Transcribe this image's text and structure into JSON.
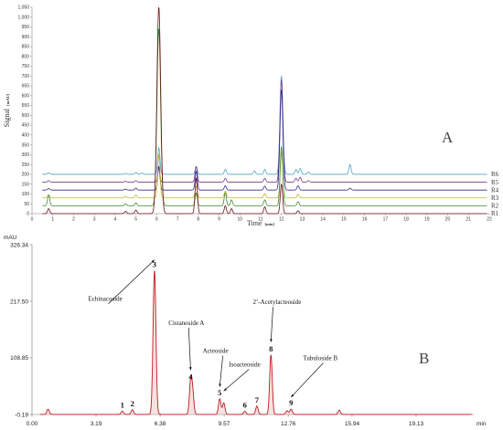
{
  "chart_data": [
    {
      "type": "line",
      "panel_label": "A",
      "xlabel": "Time",
      "xunit": "[min]",
      "ylabel": "Signal",
      "yunit": "[mAU]",
      "xlim": [
        0,
        22
      ],
      "ylim": [
        0,
        1050
      ],
      "x_ticks": [
        "0",
        "1",
        "2",
        "3",
        "4",
        "5",
        "6",
        "7",
        "8",
        "9",
        "10",
        "11",
        "12",
        "13",
        "14",
        "15",
        "16",
        "17",
        "18",
        "19",
        "20",
        "21",
        "22"
      ],
      "y_ticks": [
        "0",
        "50",
        "100",
        "150",
        "200",
        "250",
        "300",
        "350",
        "400",
        "450",
        "500",
        "550",
        "600",
        "650",
        "700",
        "750",
        "800",
        "850",
        "900",
        "950",
        "1,000",
        "1,050"
      ],
      "baseline_offset_step": 40,
      "peak_width_min": 0.05,
      "series": [
        {
          "name": "R6",
          "color": "#4BA3C3",
          "peaks": [
            [
              0.8,
              8
            ],
            [
              4.5,
              5
            ],
            [
              5.0,
              10
            ],
            [
              5.3,
              6
            ],
            [
              6.1,
              135
            ],
            [
              7.9,
              40
            ],
            [
              9.3,
              25
            ],
            [
              10.7,
              18
            ],
            [
              11.2,
              25
            ],
            [
              12.0,
              500
            ],
            [
              12.7,
              25
            ],
            [
              12.9,
              30
            ],
            [
              13.3,
              12
            ],
            [
              15.3,
              50
            ]
          ]
        },
        {
          "name": "R5",
          "color": "#7A3D8A",
          "peaks": [
            [
              0.8,
              8
            ],
            [
              4.5,
              5
            ],
            [
              5.0,
              8
            ],
            [
              6.1,
              70
            ],
            [
              7.9,
              80
            ],
            [
              9.3,
              20
            ],
            [
              11.2,
              20
            ],
            [
              12.0,
              520
            ],
            [
              12.7,
              20
            ],
            [
              12.9,
              25
            ],
            [
              13.3,
              8
            ]
          ]
        },
        {
          "name": "R4",
          "color": "#2E2A8C",
          "peaks": [
            [
              0.8,
              8
            ],
            [
              4.5,
              5
            ],
            [
              5.0,
              10
            ],
            [
              6.1,
              120
            ],
            [
              7.9,
              95
            ],
            [
              9.3,
              22
            ],
            [
              11.2,
              20
            ],
            [
              12.0,
              510
            ],
            [
              12.8,
              22
            ],
            [
              15.3,
              10
            ]
          ]
        },
        {
          "name": "R3",
          "color": "#C7B22A",
          "peaks": [
            [
              0.8,
              15
            ],
            [
              4.5,
              8
            ],
            [
              5.0,
              15
            ],
            [
              6.1,
              220
            ],
            [
              7.9,
              60
            ],
            [
              9.3,
              35
            ],
            [
              11.2,
              22
            ],
            [
              12.0,
              230
            ],
            [
              12.8,
              18
            ]
          ]
        },
        {
          "name": "R2",
          "color": "#3E8A2F",
          "peaks": [
            [
              0.8,
              55
            ],
            [
              4.5,
              10
            ],
            [
              5.0,
              15
            ],
            [
              6.1,
              900
            ],
            [
              7.9,
              65
            ],
            [
              9.3,
              65
            ],
            [
              9.6,
              30
            ],
            [
              11.2,
              30
            ],
            [
              12.0,
              300
            ],
            [
              12.8,
              20
            ]
          ]
        },
        {
          "name": "R1",
          "color": "#6B1414",
          "peaks": [
            [
              0.8,
              25
            ],
            [
              4.5,
              12
            ],
            [
              5.0,
              18
            ],
            [
              6.1,
              1050
            ],
            [
              7.9,
              180
            ],
            [
              9.3,
              40
            ],
            [
              9.6,
              25
            ],
            [
              11.2,
              35
            ],
            [
              12.0,
              150
            ],
            [
              12.8,
              15
            ]
          ]
        }
      ]
    },
    {
      "type": "line",
      "panel_label": "B",
      "ylabel": "mAU",
      "xlabel": "min",
      "xlim": [
        0.0,
        22.0
      ],
      "ylim": [
        -0.19,
        326.34
      ],
      "x_ticks": [
        0.0,
        3.19,
        6.38,
        9.57,
        12.76,
        15.94,
        19.13
      ],
      "x_tick_labels": [
        "0.00",
        "3.19",
        "6.38",
        "9.57",
        "12.76",
        "15.94",
        "19.13"
      ],
      "y_ticks": [
        -0.19,
        108.85,
        217.5,
        326.34
      ],
      "y_tick_labels": [
        "-0.19",
        "108.85",
        "217.50",
        "326.34"
      ],
      "color": "#C0191D",
      "peak_width_min": 0.06,
      "peaks": [
        [
          0.8,
          10
        ],
        [
          4.5,
          6
        ],
        [
          5.0,
          9
        ],
        [
          6.1,
          276
        ],
        [
          7.9,
          60
        ],
        [
          8.0,
          40
        ],
        [
          9.35,
          30
        ],
        [
          9.55,
          22
        ],
        [
          10.6,
          6
        ],
        [
          11.2,
          16
        ],
        [
          11.9,
          114
        ],
        [
          12.7,
          7
        ],
        [
          12.9,
          10
        ],
        [
          15.3,
          8
        ]
      ],
      "peak_labels": [
        {
          "num": "1",
          "x": 4.5,
          "y": 6
        },
        {
          "num": "2",
          "x": 5.0,
          "y": 9
        },
        {
          "num": "3",
          "x": 6.1,
          "y": 276
        },
        {
          "num": "4",
          "x": 7.9,
          "y": 60
        },
        {
          "num": "5",
          "x": 9.35,
          "y": 30
        },
        {
          "num": "6",
          "x": 10.6,
          "y": 6
        },
        {
          "num": "7",
          "x": 11.2,
          "y": 16
        },
        {
          "num": "8",
          "x": 11.9,
          "y": 114
        },
        {
          "num": "9",
          "x": 12.9,
          "y": 10
        }
      ],
      "compounds": [
        {
          "name": "Echinacoside",
          "peak": 6.1,
          "peak_y": 276,
          "label_x": 2.8,
          "label_y": 218
        },
        {
          "name": "Cistanoside A",
          "peak": 7.9,
          "peak_y": 64,
          "label_x": 6.8,
          "label_y": 172
        },
        {
          "name": "Acteoside",
          "peak": 9.35,
          "peak_y": 32,
          "label_x": 8.5,
          "label_y": 118
        },
        {
          "name": "Isoacteoside",
          "peak": 9.55,
          "peak_y": 24,
          "label_x": 9.8,
          "label_y": 92
        },
        {
          "name": "2’-Acetylacteoside",
          "peak": 11.9,
          "peak_y": 118,
          "label_x": 11.0,
          "label_y": 212
        },
        {
          "name": "Tubuloside B",
          "peak": 12.9,
          "peak_y": 12,
          "label_x": 13.5,
          "label_y": 104
        }
      ]
    }
  ]
}
